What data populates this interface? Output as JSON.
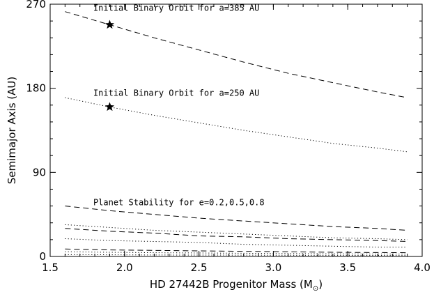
{
  "chart_data": {
    "type": "line",
    "xlabel": "HD 27442B Progenitor Mass (M",
    "xlabel_subscript": "⊙",
    "xlabel_close": ")",
    "ylabel": "Semimajor Axis (AU)",
    "xlim": [
      1.5,
      4.0
    ],
    "ylim": [
      0,
      270
    ],
    "xticks": [
      "1.5",
      "2.0",
      "2.5",
      "3.0",
      "3.5",
      "4.0"
    ],
    "yticks": [
      "0",
      "90",
      "180",
      "270"
    ],
    "grid": false,
    "x": [
      1.6,
      1.9,
      2.2,
      2.5,
      2.8,
      3.1,
      3.4,
      3.7,
      3.9
    ],
    "series": [
      {
        "style": "dashed",
        "values": [
          262,
          248,
          234,
          221,
          208,
          196,
          186,
          176,
          170
        ]
      },
      {
        "style": "dotted",
        "values": [
          170,
          160,
          151,
          143,
          135,
          128,
          121,
          116,
          112
        ]
      },
      {
        "style": "dashed",
        "values": [
          54,
          49,
          45,
          41,
          38,
          35,
          32,
          30,
          28
        ]
      },
      {
        "style": "dotted",
        "values": [
          34,
          31,
          28,
          26,
          24,
          22,
          20,
          19,
          18
        ]
      },
      {
        "style": "dashed",
        "values": [
          30,
          27,
          25,
          22,
          21,
          19,
          18,
          17,
          16
        ]
      },
      {
        "style": "dotted",
        "values": [
          19,
          17,
          16,
          15,
          13,
          12,
          11,
          10,
          10
        ]
      },
      {
        "style": "dashed",
        "values": [
          8,
          7,
          6.5,
          6,
          5.5,
          5,
          4.5,
          4.2,
          4
        ]
      },
      {
        "style": "dotted",
        "values": [
          5,
          4.5,
          4,
          3.7,
          3.4,
          3.1,
          2.8,
          2.6,
          2.5
        ]
      },
      {
        "style": "dotted",
        "values": [
          2,
          1.8,
          1.6,
          1.5,
          1.4,
          1.3,
          1.2,
          1.1,
          1
        ]
      }
    ],
    "markers": [
      {
        "symbol": "star",
        "x": 1.9,
        "y": 248
      },
      {
        "symbol": "star",
        "x": 1.9,
        "y": 160
      }
    ],
    "annotations": [
      {
        "text": "Initial Binary Orbit for a=385 AU",
        "x": 1.79,
        "y": 263
      },
      {
        "text": "Initial Binary Orbit for a=250 AU",
        "x": 1.79,
        "y": 172
      },
      {
        "text": "Planet Stability for e=0.2,0.5,0.8",
        "x": 1.79,
        "y": 55
      }
    ]
  }
}
